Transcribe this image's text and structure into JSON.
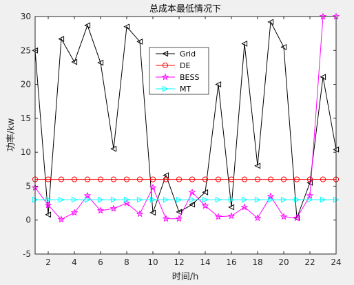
{
  "chart_data": {
    "type": "line",
    "title": "总成本最低情况下",
    "xlabel": "时间/h",
    "ylabel": "功率/kw",
    "xlim": [
      1,
      24
    ],
    "ylim": [
      -5,
      30
    ],
    "xticks": [
      2,
      4,
      6,
      8,
      10,
      12,
      14,
      16,
      18,
      20,
      22,
      24
    ],
    "yticks": [
      -5,
      0,
      5,
      10,
      15,
      20,
      25,
      30
    ],
    "grid": false,
    "legend_position": "upper-middle",
    "x": [
      1,
      2,
      3,
      4,
      5,
      6,
      7,
      8,
      9,
      10,
      11,
      12,
      13,
      14,
      15,
      16,
      17,
      18,
      19,
      20,
      21,
      22,
      23,
      24
    ],
    "series": [
      {
        "name": "Grid",
        "color": "#000000",
        "marker": "triangle-left",
        "values": [
          25,
          0.8,
          26.7,
          23.3,
          28.7,
          23.2,
          10.5,
          28.5,
          26.3,
          1.1,
          6.6,
          1.2,
          2.3,
          4.1,
          20.0,
          1.9,
          26.0,
          8.0,
          29.2,
          25.5,
          0.3,
          5.5,
          21.1,
          10.4
        ]
      },
      {
        "name": "DE",
        "color": "#ff0000",
        "marker": "circle",
        "values": [
          6,
          6,
          6,
          6,
          6,
          6,
          6,
          6,
          6,
          6,
          6,
          6,
          6,
          6,
          6,
          6,
          6,
          6,
          6,
          6,
          6,
          6,
          6,
          6
        ]
      },
      {
        "name": "BESS",
        "color": "#ff00ff",
        "marker": "star",
        "values": [
          4.8,
          2.2,
          0.1,
          1.1,
          3.6,
          1.4,
          1.7,
          2.5,
          0.9,
          4.8,
          0.2,
          0.2,
          4.1,
          2.1,
          0.5,
          0.6,
          1.9,
          0.3,
          3.5,
          0.5,
          0.3,
          3.6,
          30,
          30
        ]
      },
      {
        "name": "MT",
        "color": "#00ffff",
        "marker": "triangle-right",
        "values": [
          3,
          3,
          3,
          3,
          3,
          3,
          3,
          3,
          3,
          3,
          3,
          3,
          3,
          3,
          3,
          3,
          3,
          3,
          3,
          3,
          3,
          3,
          3,
          3
        ]
      }
    ]
  }
}
